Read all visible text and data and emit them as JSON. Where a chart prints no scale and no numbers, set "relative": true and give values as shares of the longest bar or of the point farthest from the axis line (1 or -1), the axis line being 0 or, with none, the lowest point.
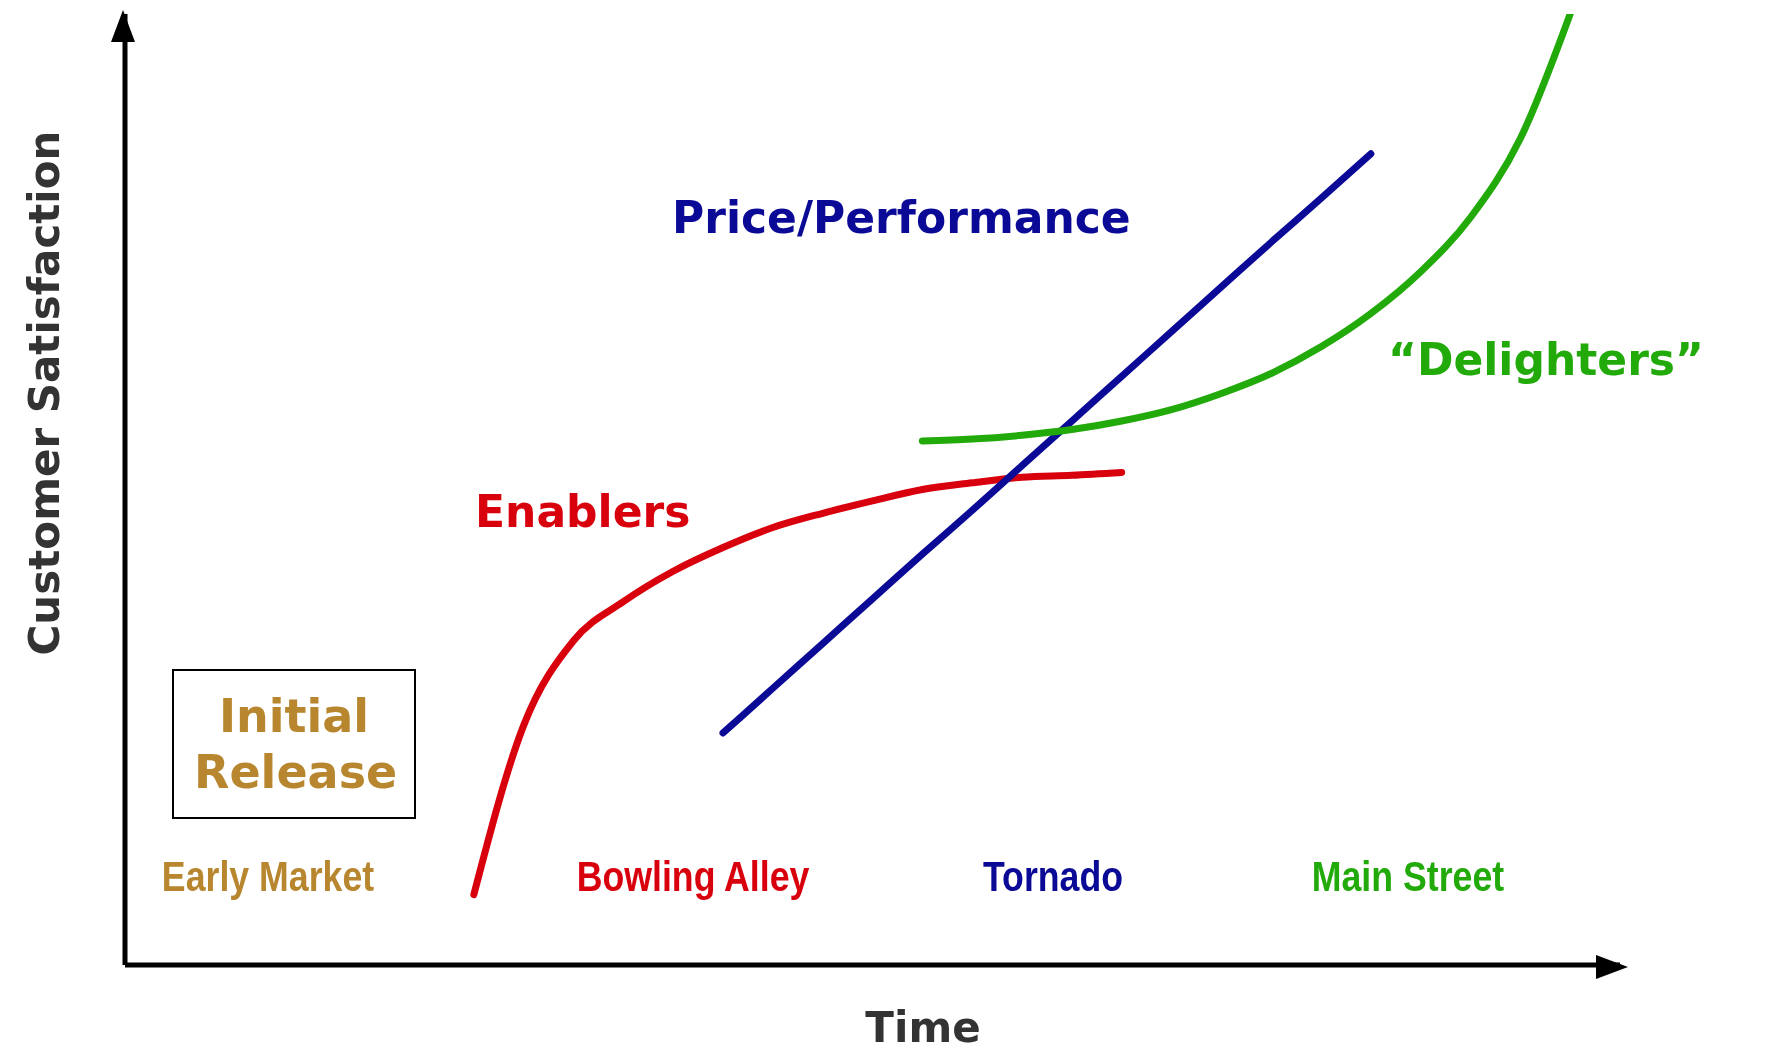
{
  "chart_data": {
    "type": "line",
    "relative": true,
    "xlabel": "Time",
    "ylabel": "Customer Satisfaction",
    "marker": "none",
    "line_style": "solid",
    "categories": [
      null,
      null,
      null,
      null,
      null,
      null,
      null,
      null,
      null,
      null,
      null,
      null,
      null,
      null,
      null,
      null,
      null,
      null,
      null,
      null,
      null,
      null,
      null,
      null,
      null,
      null,
      null,
      null,
      null,
      null,
      null
    ],
    "series": [
      {
        "name": "Enablers",
        "color": "#d9000d",
        "values": [
          null,
          null,
          null,
          null,
          null,
          null,
          null,
          0.074,
          0.252,
          0.341,
          0.382,
          0.414,
          0.439,
          0.46,
          0.475,
          0.488,
          0.5,
          0.507,
          0.513,
          0.515,
          0.518,
          null,
          null,
          null,
          null,
          null,
          null,
          null,
          null,
          null,
          null
        ]
      },
      {
        "name": "Price/Performance",
        "color": "#0a0a96",
        "values": [
          null,
          null,
          null,
          null,
          null,
          null,
          null,
          null,
          null,
          null,
          null,
          null,
          0.244,
          0.291,
          0.338,
          0.385,
          0.432,
          0.478,
          0.525,
          0.572,
          0.619,
          0.666,
          0.713,
          0.76,
          0.806,
          0.853,
          null,
          null,
          null,
          null,
          null
        ]
      },
      {
        "name": "“Delighters”",
        "color": "#22aa0a",
        "values": [
          null,
          null,
          null,
          null,
          null,
          null,
          null,
          null,
          null,
          null,
          null,
          null,
          null,
          null,
          null,
          null,
          0.551,
          0.553,
          0.557,
          0.563,
          0.572,
          0.584,
          0.601,
          0.622,
          0.65,
          0.685,
          0.729,
          0.786,
          0.869,
          1,
          null
        ]
      }
    ],
    "annotations": [
      "Initial Release",
      "Early Market",
      "Bowling Alley",
      "Tornado",
      "Main Street"
    ]
  }
}
